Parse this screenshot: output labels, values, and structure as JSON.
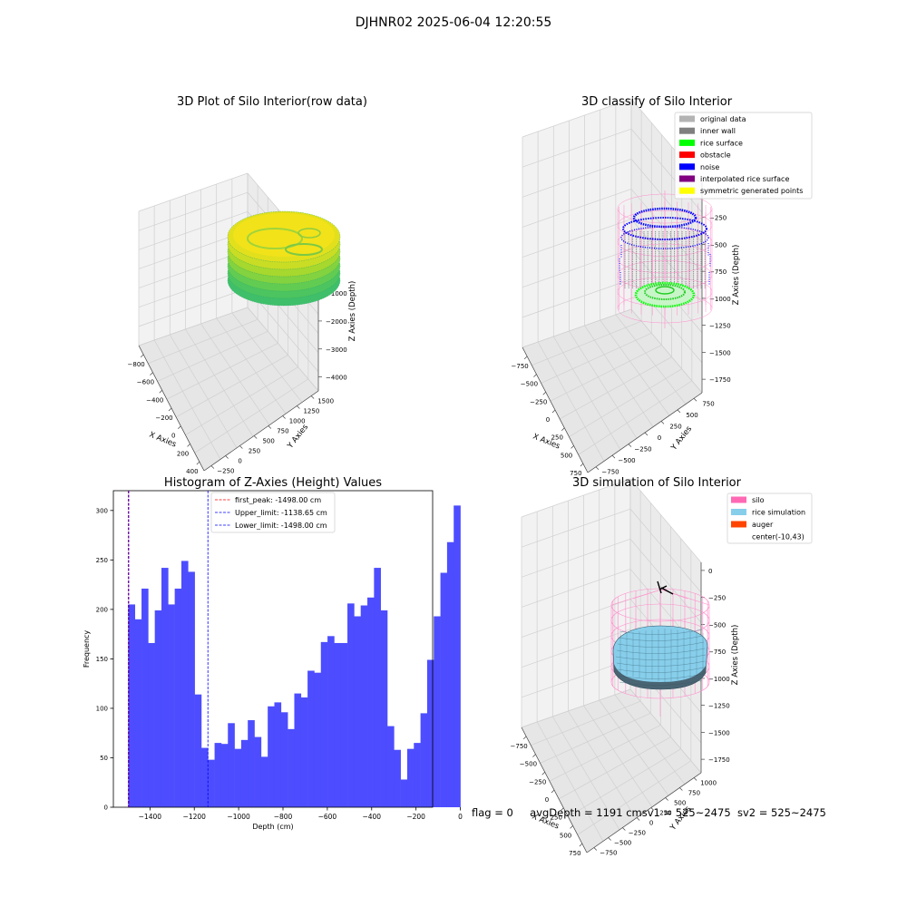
{
  "suptitle": "DJHNR02 2025-06-04 12:20:55",
  "status": {
    "flag": "flag = 0",
    "avg_depth": "avgDepth = 1191 cm",
    "sv1": "sv1 = 525~2475",
    "sv2": "sv2 = 525~2475"
  },
  "colors": {
    "original_data": "#b3b3b3",
    "inner_wall": "#808080",
    "rice_surface": "#00ff00",
    "obstacle": "#ff0000",
    "noise": "#0000ff",
    "interpolated": "#800080",
    "symmetric": "#ffff00",
    "silo": "#ff69b4",
    "rice_sim": "#87ceeb",
    "auger": "#ff4500",
    "hist_bar": "#4d4dff",
    "first_peak_line": "#ff0000",
    "upper_line": "#0000ff",
    "lower_line": "#0000ff"
  },
  "chart_data": [
    {
      "type": "scatter3d",
      "title": "3D Plot of Silo Interior(row data)",
      "xlabel": "X Axies",
      "ylabel": "Y Axies",
      "zlabel": "Z Axies (Depth)",
      "xticks": [
        "−800",
        "−600",
        "−400",
        "−200",
        "0",
        "200",
        "400"
      ],
      "yticks": [
        "−250",
        "0",
        "250",
        "500",
        "750",
        "1000",
        "1250",
        "1500"
      ],
      "zticks": [
        "0",
        "−1000",
        "−2000",
        "−3000",
        "−4000"
      ],
      "colormap": "viridis"
    },
    {
      "type": "scatter3d",
      "title": "3D classify of Silo Interior",
      "xlabel": "X Axies",
      "ylabel": "Y Axies",
      "zlabel": "Z Axies (Depth)",
      "xticks": [
        "−750",
        "−500",
        "−250",
        "0",
        "250",
        "500",
        "750"
      ],
      "yticks": [
        "−750",
        "−500",
        "−250",
        "0",
        "250",
        "500",
        "750"
      ],
      "zticks": [
        "0",
        "−250",
        "−500",
        "−750",
        "−1000",
        "−1250",
        "−1500",
        "−1750"
      ],
      "legend": [
        "original data",
        "inner wall",
        "rice surface",
        "obstacle",
        "noise",
        "interpolated rice surface",
        "symmetric generated points"
      ],
      "legend_loc": "upper right"
    },
    {
      "type": "bar",
      "title": "Histogram of Z-Axies (Height) Values",
      "xlabel": "Depth (cm)",
      "ylabel": "Frequency",
      "xlim": [
        -1565,
        -125
      ],
      "ylim": [
        0,
        320
      ],
      "xticks": [
        -1400,
        -1200,
        -1000,
        -800,
        -600,
        -400,
        -200,
        0
      ],
      "xtick_labels": [
        "−1400",
        "−1200",
        "−1000",
        "−800",
        "−600",
        "−400",
        "−200",
        "0"
      ],
      "yticks": [
        0,
        50,
        100,
        150,
        200,
        250,
        300
      ],
      "yticks_labels": [
        "0",
        "50",
        "100",
        "150",
        "200",
        "250",
        "300"
      ],
      "bin_start": -1498,
      "bin_width": 29.96,
      "values": [
        205,
        190,
        221,
        166,
        199,
        242,
        205,
        221,
        249,
        238,
        114,
        60,
        48,
        65,
        64,
        85,
        59,
        68,
        88,
        71,
        51,
        102,
        106,
        96,
        79,
        115,
        111,
        138,
        136,
        167,
        173,
        166,
        166,
        206,
        193,
        204,
        212,
        242,
        199,
        82,
        58,
        28,
        59,
        65,
        95,
        149,
        193,
        237,
        268,
        305
      ],
      "vlines": [
        {
          "label": "first_peak: -1498.00 cm",
          "x": -1498.0,
          "color": "#ff0000"
        },
        {
          "label": "Upper_limit: -1138.65 cm",
          "x": -1138.65,
          "color": "#0000ff"
        },
        {
          "label": "Lower_limit: -1498.00 cm",
          "x": -1498.0,
          "color": "#0000ff"
        }
      ],
      "legend_loc": "upper center"
    },
    {
      "type": "surface3d",
      "title": "3D simulation of Silo Interior",
      "xlabel": "X Axies",
      "ylabel": "Y Axies",
      "zlabel": "Z Axies (Depth)",
      "xticks": [
        "−750",
        "−500",
        "−250",
        "0",
        "250",
        "500",
        "750"
      ],
      "yticks": [
        "−750",
        "−500",
        "−250",
        "0",
        "250",
        "500",
        "750",
        "1000"
      ],
      "zticks": [
        "0",
        "−250",
        "−500",
        "−750",
        "−1000",
        "−1250",
        "−1500",
        "−1750"
      ],
      "legend": [
        "silo",
        "rice simulation",
        "auger",
        "center(-10,43)"
      ],
      "legend_loc": "upper right"
    }
  ]
}
